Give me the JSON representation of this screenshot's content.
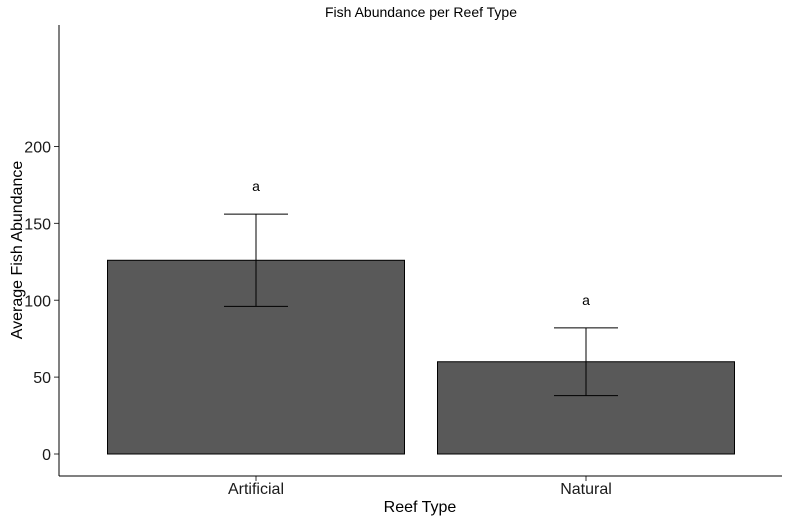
{
  "chart_data": {
    "type": "bar",
    "title": "Fish Abundance per Reef Type",
    "xlabel": "Reef Type",
    "ylabel": "Average Fish Abundance",
    "categories": [
      "Artificial",
      "Natural"
    ],
    "values": [
      126,
      60
    ],
    "error_lower": [
      96,
      38
    ],
    "error_upper": [
      156,
      82
    ],
    "annotations": [
      "a",
      "a"
    ],
    "ylim": [
      0,
      210
    ],
    "yticks": [
      0,
      50,
      100,
      150,
      200
    ],
    "grid": false,
    "bar_color": "#595959",
    "bar_edge_color": "#000000"
  }
}
